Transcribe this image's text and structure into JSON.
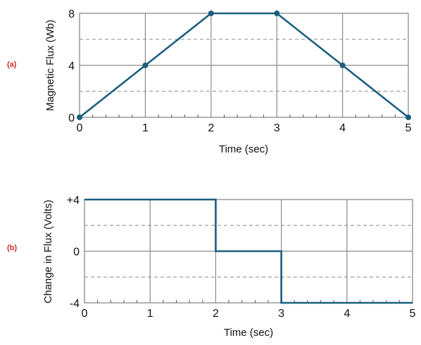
{
  "colors": {
    "series": "#1b5e7e",
    "grid": "#8a8a8a",
    "dashed": "#8a8a8a",
    "panel_label": "#d62828"
  },
  "chart_data": [
    {
      "type": "line",
      "panel_label": "(a)",
      "xlabel": "Time (sec)",
      "ylabel": "Magnetic Flux (Wb)",
      "xlim": [
        0,
        5
      ],
      "ylim": [
        0,
        8
      ],
      "x_ticks": [
        "0",
        "1",
        "2",
        "3",
        "4",
        "5"
      ],
      "y_ticks": [
        "0",
        "4",
        "8"
      ],
      "y_ticks_values": [
        0,
        4,
        8
      ],
      "dashed_gridlines": [
        2,
        6
      ],
      "markers": true,
      "step": false,
      "series": [
        {
          "x": [
            0,
            1,
            2,
            3,
            4,
            5
          ],
          "y": [
            0,
            4,
            8,
            8,
            4,
            0
          ]
        }
      ]
    },
    {
      "type": "line",
      "panel_label": "(b)",
      "xlabel": "Time (sec)",
      "ylabel": "Change in Flux (Volts)",
      "xlim": [
        0,
        5
      ],
      "ylim": [
        -4,
        4
      ],
      "x_ticks": [
        "0",
        "1",
        "2",
        "3",
        "4",
        "5"
      ],
      "y_ticks": [
        "-4",
        "0",
        "+4"
      ],
      "y_ticks_values": [
        -4,
        0,
        4
      ],
      "dashed_gridlines": [
        -2,
        2
      ],
      "markers": false,
      "step": true,
      "series": [
        {
          "x": [
            0,
            2,
            2,
            3,
            3,
            5
          ],
          "y": [
            4,
            4,
            0,
            0,
            -4,
            -4
          ]
        }
      ]
    }
  ]
}
